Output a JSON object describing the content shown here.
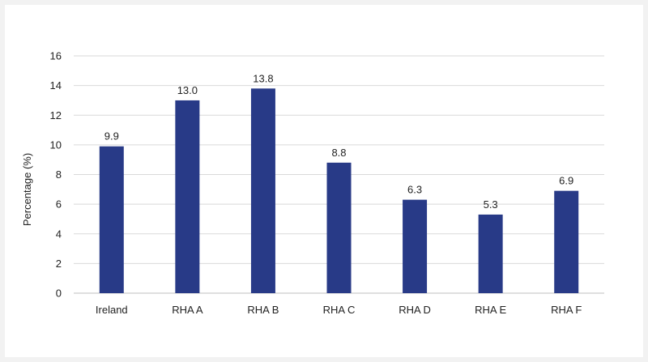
{
  "chart_data": {
    "type": "bar",
    "title": "",
    "xlabel": "",
    "ylabel": "Percentage (%)",
    "ylim": [
      0,
      16
    ],
    "yticks": [
      0,
      2,
      4,
      6,
      8,
      10,
      12,
      14,
      16
    ],
    "grid": true,
    "legend": "none",
    "categories": [
      "Ireland",
      "RHA A",
      "RHA B",
      "RHA C",
      "RHA D",
      "RHA E",
      "RHA F"
    ],
    "values": [
      9.9,
      13.0,
      13.8,
      8.8,
      6.3,
      5.3,
      6.9
    ],
    "data_labels": [
      "9.9",
      "13.0",
      "13.8",
      "8.8",
      "6.3",
      "5.3",
      "6.9"
    ],
    "bar_color": "#283a87"
  }
}
